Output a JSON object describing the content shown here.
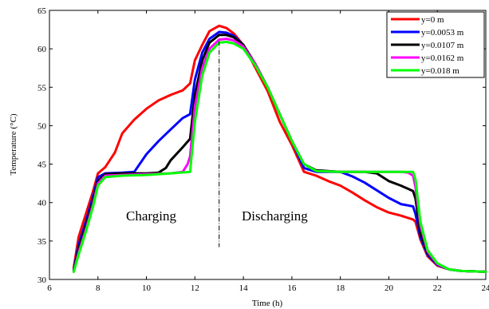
{
  "chart_data": {
    "type": "line",
    "xlabel": "Time (h)",
    "ylabel": "Temperature (°C)",
    "xlim": [
      6,
      24
    ],
    "ylim": [
      30,
      65
    ],
    "xticks": [
      6,
      8,
      10,
      12,
      14,
      16,
      18,
      20,
      22,
      24
    ],
    "yticks": [
      30,
      35,
      40,
      45,
      50,
      55,
      60,
      65
    ],
    "grid": false,
    "legend_position": "top-right",
    "annotations": [
      "Charging",
      "Discharging"
    ],
    "divider_x": 13,
    "series": [
      {
        "name": "y=0 m",
        "color": "#ff0000",
        "points": [
          [
            7,
            31.5
          ],
          [
            7.2,
            35.5
          ],
          [
            7.5,
            38.5
          ],
          [
            7.8,
            41.5
          ],
          [
            8,
            43.8
          ],
          [
            8.3,
            44.6
          ],
          [
            8.7,
            46.5
          ],
          [
            9,
            49
          ],
          [
            9.5,
            50.8
          ],
          [
            10,
            52.2
          ],
          [
            10.5,
            53.3
          ],
          [
            11,
            54
          ],
          [
            11.5,
            54.6
          ],
          [
            11.8,
            55.5
          ],
          [
            12,
            58.5
          ],
          [
            12.3,
            60.5
          ],
          [
            12.6,
            62.3
          ],
          [
            13,
            63
          ],
          [
            13.3,
            62.7
          ],
          [
            13.6,
            62
          ],
          [
            14,
            60.5
          ],
          [
            14.5,
            57.5
          ],
          [
            15,
            54.5
          ],
          [
            15.5,
            50.5
          ],
          [
            16,
            47.5
          ],
          [
            16.5,
            44
          ],
          [
            17,
            43.5
          ],
          [
            17.5,
            42.8
          ],
          [
            18,
            42.2
          ],
          [
            18.5,
            41.3
          ],
          [
            19,
            40.3
          ],
          [
            19.5,
            39.4
          ],
          [
            20,
            38.7
          ],
          [
            20.5,
            38.3
          ],
          [
            21,
            37.8
          ],
          [
            21.1,
            37.5
          ],
          [
            21.3,
            35.2
          ],
          [
            21.6,
            33
          ],
          [
            22,
            31.8
          ],
          [
            22.5,
            31.3
          ],
          [
            23,
            31.1
          ],
          [
            24,
            31
          ]
        ]
      },
      {
        "name": "y=0.0053 m",
        "color": "#0000ff",
        "points": [
          [
            7,
            31.2
          ],
          [
            7.2,
            34.5
          ],
          [
            7.5,
            37.5
          ],
          [
            7.8,
            40.8
          ],
          [
            8,
            43.3
          ],
          [
            8.3,
            43.8
          ],
          [
            9,
            43.9
          ],
          [
            9.5,
            44
          ],
          [
            10,
            46.3
          ],
          [
            10.5,
            48
          ],
          [
            11,
            49.5
          ],
          [
            11.5,
            51
          ],
          [
            11.8,
            51.5
          ],
          [
            12,
            56
          ],
          [
            12.3,
            59.5
          ],
          [
            12.6,
            61.3
          ],
          [
            13,
            62.2
          ],
          [
            13.3,
            62.1
          ],
          [
            13.6,
            61.7
          ],
          [
            14,
            60.5
          ],
          [
            14.5,
            58
          ],
          [
            15,
            55
          ],
          [
            15.5,
            51.5
          ],
          [
            16,
            48
          ],
          [
            16.5,
            44.5
          ],
          [
            17,
            44
          ],
          [
            18,
            44
          ],
          [
            18.5,
            43.4
          ],
          [
            19,
            42.6
          ],
          [
            19.5,
            41.6
          ],
          [
            20,
            40.6
          ],
          [
            20.5,
            39.8
          ],
          [
            21,
            39.5
          ],
          [
            21.1,
            38.5
          ],
          [
            21.3,
            35.5
          ],
          [
            21.6,
            33.2
          ],
          [
            22,
            31.9
          ],
          [
            22.5,
            31.3
          ],
          [
            23,
            31.1
          ],
          [
            24,
            31
          ]
        ]
      },
      {
        "name": "y=0.0107 m",
        "color": "#000000",
        "points": [
          [
            7,
            31.1
          ],
          [
            7.2,
            34
          ],
          [
            7.5,
            37
          ],
          [
            7.8,
            40.3
          ],
          [
            8,
            42.8
          ],
          [
            8.3,
            43.7
          ],
          [
            9,
            43.8
          ],
          [
            10,
            43.8
          ],
          [
            10.5,
            43.9
          ],
          [
            10.8,
            44.5
          ],
          [
            11,
            45.5
          ],
          [
            11.5,
            47.2
          ],
          [
            11.8,
            48.3
          ],
          [
            12,
            54
          ],
          [
            12.3,
            58.5
          ],
          [
            12.6,
            60.8
          ],
          [
            13,
            61.8
          ],
          [
            13.3,
            61.8
          ],
          [
            13.6,
            61.5
          ],
          [
            14,
            60.5
          ],
          [
            14.5,
            58
          ],
          [
            15,
            55
          ],
          [
            15.5,
            51.5
          ],
          [
            16,
            48
          ],
          [
            16.5,
            45
          ],
          [
            17,
            44.2
          ],
          [
            18,
            44
          ],
          [
            19,
            44
          ],
          [
            19.5,
            43.8
          ],
          [
            20,
            42.8
          ],
          [
            20.5,
            42.2
          ],
          [
            21,
            41.5
          ],
          [
            21.1,
            40.5
          ],
          [
            21.3,
            36
          ],
          [
            21.6,
            33.4
          ],
          [
            22,
            32
          ],
          [
            22.5,
            31.3
          ],
          [
            23,
            31.1
          ],
          [
            24,
            31
          ]
        ]
      },
      {
        "name": "y=0.0162 m",
        "color": "#ff00ff",
        "points": [
          [
            7,
            31
          ],
          [
            7.2,
            33.5
          ],
          [
            7.5,
            36.5
          ],
          [
            7.8,
            39.8
          ],
          [
            8,
            42.5
          ],
          [
            8.3,
            43.5
          ],
          [
            9,
            43.6
          ],
          [
            10,
            43.7
          ],
          [
            11,
            43.8
          ],
          [
            11.5,
            44
          ],
          [
            11.7,
            45
          ],
          [
            11.8,
            46
          ],
          [
            12,
            52.5
          ],
          [
            12.3,
            57.5
          ],
          [
            12.6,
            60
          ],
          [
            13,
            61.2
          ],
          [
            13.3,
            61.3
          ],
          [
            13.6,
            61.1
          ],
          [
            14,
            60.3
          ],
          [
            14.5,
            58
          ],
          [
            15,
            55
          ],
          [
            15.5,
            51.5
          ],
          [
            16,
            48
          ],
          [
            16.5,
            45
          ],
          [
            17,
            44.1
          ],
          [
            18,
            44
          ],
          [
            19,
            44
          ],
          [
            20,
            44
          ],
          [
            20.5,
            44
          ],
          [
            20.8,
            43.9
          ],
          [
            21,
            43.5
          ],
          [
            21.1,
            42
          ],
          [
            21.3,
            37
          ],
          [
            21.6,
            33.6
          ],
          [
            22,
            32
          ],
          [
            22.5,
            31.3
          ],
          [
            23,
            31.1
          ],
          [
            24,
            31
          ]
        ]
      },
      {
        "name": "y=0.018 m",
        "color": "#00ff00",
        "points": [
          [
            7,
            31
          ],
          [
            7.2,
            33.2
          ],
          [
            7.5,
            36.2
          ],
          [
            7.8,
            39.5
          ],
          [
            8,
            42.2
          ],
          [
            8.3,
            43.3
          ],
          [
            9,
            43.5
          ],
          [
            10,
            43.6
          ],
          [
            11,
            43.8
          ],
          [
            11.8,
            44
          ],
          [
            12,
            50.5
          ],
          [
            12.3,
            56.5
          ],
          [
            12.6,
            59.5
          ],
          [
            13,
            60.8
          ],
          [
            13.3,
            60.9
          ],
          [
            13.6,
            60.7
          ],
          [
            14,
            60
          ],
          [
            14.5,
            57.8
          ],
          [
            15,
            55
          ],
          [
            15.5,
            51.5
          ],
          [
            16,
            48
          ],
          [
            16.5,
            45
          ],
          [
            17,
            44.1
          ],
          [
            18,
            44
          ],
          [
            19,
            44
          ],
          [
            20,
            44
          ],
          [
            21,
            44
          ],
          [
            21.1,
            43
          ],
          [
            21.3,
            37.5
          ],
          [
            21.6,
            33.8
          ],
          [
            22,
            32.1
          ],
          [
            22.5,
            31.3
          ],
          [
            23,
            31.1
          ],
          [
            24,
            31
          ]
        ]
      }
    ]
  }
}
